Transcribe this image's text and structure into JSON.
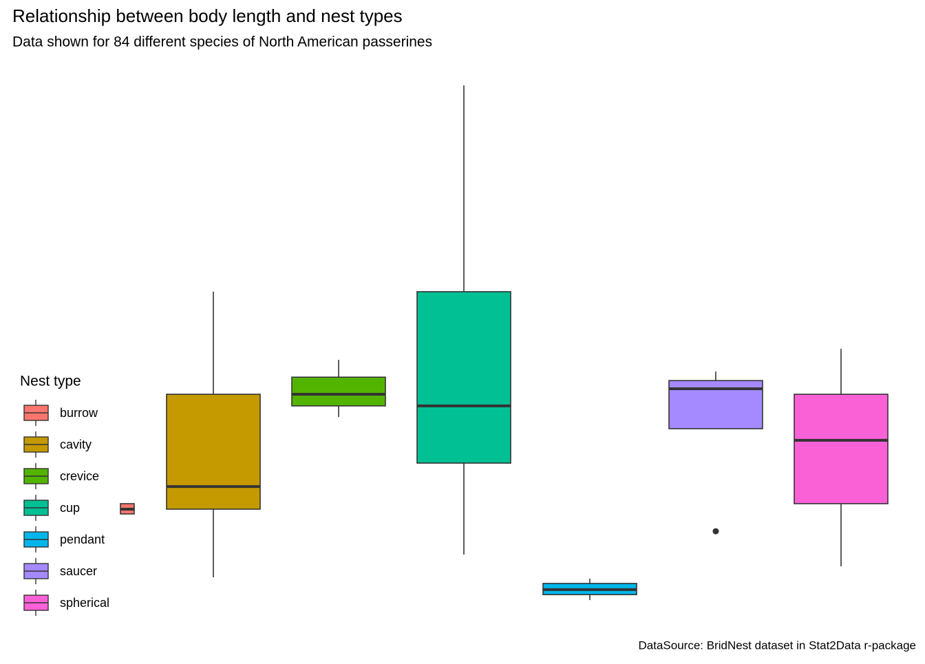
{
  "chart_data": {
    "type": "box",
    "title": "Relationship between body length and nest types",
    "subtitle": "Data shown for 84 different species of North American passerines",
    "caption": "DataSource: BridNest dataset in Stat2Data r-package",
    "legend_title": "Nest type",
    "legend_position": "left",
    "grid": false,
    "categories": [
      "burrow",
      "cavity",
      "crevice",
      "cup",
      "pendant",
      "saucer",
      "spherical"
    ],
    "colors": [
      "#f8766d",
      "#c49a00",
      "#53b400",
      "#00c094",
      "#00b6eb",
      "#a58aff",
      "#fb61d7"
    ],
    "boxes": [
      {
        "min": 12.32,
        "q1": 12.32,
        "median": 12.53,
        "q3": 12.77,
        "max": 12.77,
        "outliers": []
      },
      {
        "min": 9.54,
        "q1": 12.53,
        "median": 13.52,
        "q3": 17.57,
        "max": 22.07,
        "outliers": []
      },
      {
        "min": 16.57,
        "q1": 17.06,
        "median": 17.57,
        "q3": 18.32,
        "max": 19.08,
        "outliers": []
      },
      {
        "min": 10.54,
        "q1": 14.55,
        "median": 17.06,
        "q3": 22.07,
        "max": 31.12,
        "outliers": []
      },
      {
        "min": 8.54,
        "q1": 8.78,
        "median": 9.0,
        "q3": 9.27,
        "max": 9.48,
        "outliers": []
      },
      {
        "min": 16.06,
        "q1": 16.06,
        "median": 17.81,
        "q3": 18.17,
        "max": 18.57,
        "outliers": [
          11.56
        ]
      },
      {
        "min": 10.02,
        "q1": 12.77,
        "median": 15.55,
        "q3": 17.57,
        "max": 19.56,
        "outliers": []
      }
    ],
    "ylim": [
      8,
      32
    ]
  }
}
